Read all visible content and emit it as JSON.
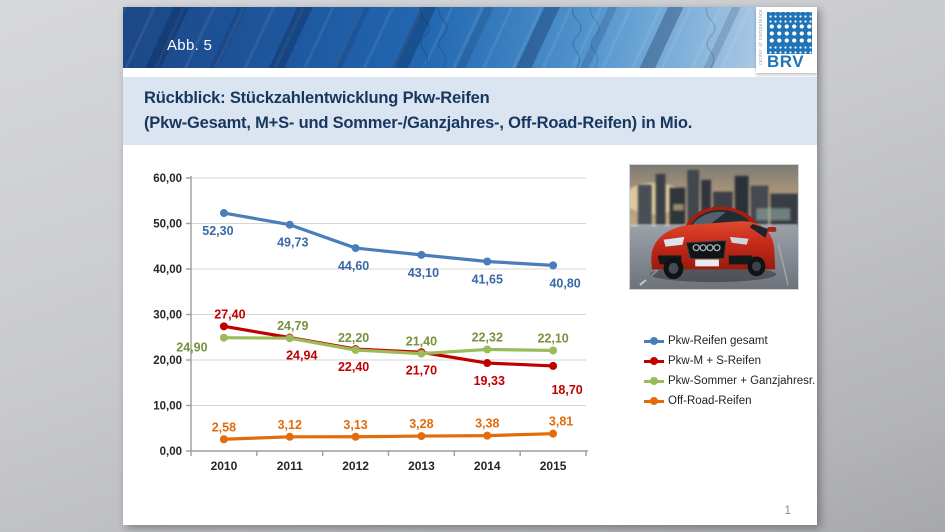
{
  "banner": {
    "label": "Abb. 5"
  },
  "logo": {
    "brand": "BRV",
    "tagline": "center of competence"
  },
  "title": {
    "line1": "Rückblick: Stückzahlentwicklung Pkw-Reifen",
    "line2": "(Pkw-Gesamt, M+S- und Sommer-/Ganzjahres-, Off-Road-Reifen) in Mio."
  },
  "page": {
    "page_number": "1"
  },
  "colors": {
    "banner_blue": "#1e58a0",
    "title_bg": "#dbe5f1",
    "title_text": "#17375e",
    "logo_blue": "#1f73b7",
    "grid": "#d6d6d6",
    "axis": "#9d9d9d",
    "axis_text": "#262626"
  },
  "chart_data": {
    "type": "line",
    "title": "",
    "xlabel": "",
    "ylabel": "",
    "categories": [
      "2010",
      "2011",
      "2012",
      "2013",
      "2014",
      "2015"
    ],
    "y_ticks": [
      "0,00",
      "10,00",
      "20,00",
      "30,00",
      "40,00",
      "50,00",
      "60,00"
    ],
    "ylim": [
      0,
      60
    ],
    "grid": true,
    "legend_position": "right",
    "series": [
      {
        "name": "Pkw-Reifen gesamt",
        "color": "#4a7ebb",
        "label_color": "#3a68a6",
        "values": [
          52.3,
          49.73,
          44.6,
          43.1,
          41.65,
          40.8
        ],
        "labels": [
          "52,30",
          "49,73",
          "44,60",
          "43,10",
          "41,65",
          "40,80"
        ],
        "label_side": [
          "below",
          "below",
          "below",
          "below",
          "below",
          "below"
        ],
        "label_dx": [
          -6,
          3,
          -2,
          2,
          0,
          12
        ]
      },
      {
        "name": "Pkw-M + S-Reifen",
        "color": "#c00000",
        "label_color": "#c00000",
        "values": [
          27.4,
          24.94,
          22.4,
          21.7,
          19.33,
          18.7
        ],
        "labels": [
          "27,40",
          "24,94",
          "22,40",
          "21,70",
          "19,33",
          "18,70"
        ],
        "label_side": [
          "above",
          "below",
          "below",
          "below",
          "below",
          "belowfar"
        ],
        "label_dx": [
          6,
          12,
          -2,
          0,
          2,
          14
        ]
      },
      {
        "name": "Pkw-Sommer + Ganzjahresr.",
        "color": "#9bbb59",
        "label_color": "#76923c",
        "values": [
          24.9,
          24.79,
          22.2,
          21.4,
          22.32,
          22.1
        ],
        "labels": [
          "24,90",
          "24,79",
          "22,20",
          "21,40",
          "22,32",
          "22,10"
        ],
        "label_side": [
          "leftbelow",
          "above",
          "above",
          "above",
          "above",
          "above"
        ],
        "label_dx": [
          -32,
          3,
          -2,
          0,
          0,
          0
        ]
      },
      {
        "name": "Off-Road-Reifen",
        "color": "#e36c0a",
        "label_color": "#e36c0a",
        "values": [
          2.58,
          3.12,
          3.13,
          3.28,
          3.38,
          3.81
        ],
        "labels": [
          "2,58",
          "3,12",
          "3,13",
          "3,28",
          "3,38",
          "3,81"
        ],
        "label_side": [
          "above",
          "above",
          "above",
          "above",
          "above",
          "above"
        ],
        "label_dx": [
          0,
          0,
          0,
          0,
          0,
          8
        ]
      }
    ]
  }
}
